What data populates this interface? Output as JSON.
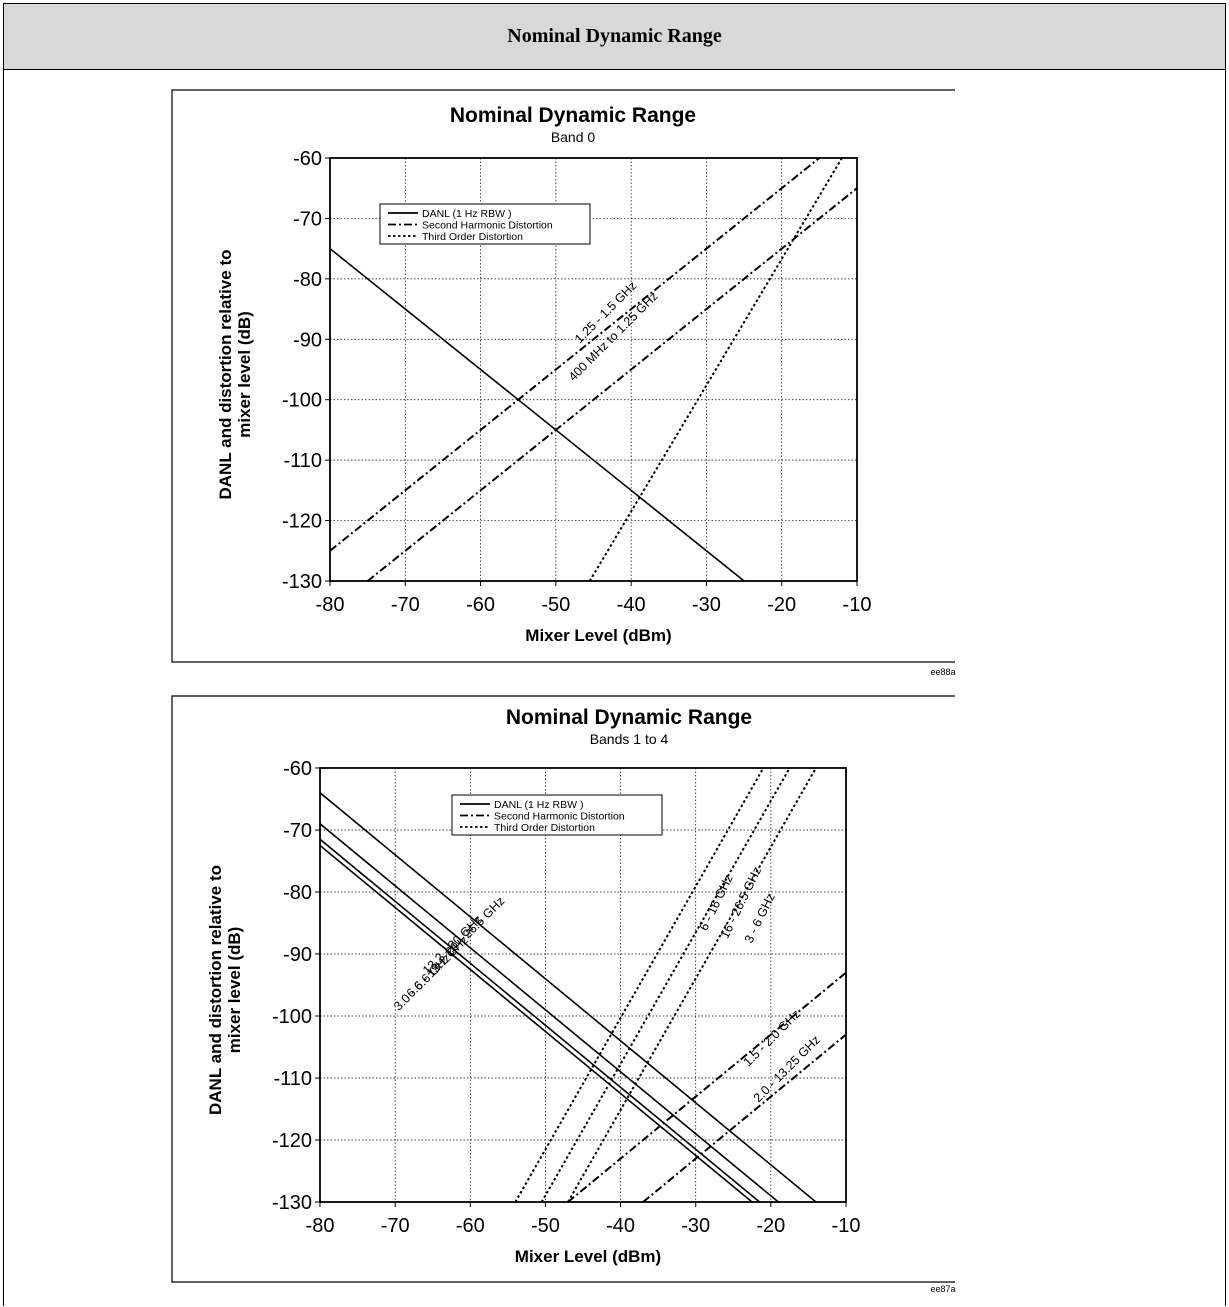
{
  "header": {
    "title": "Nominal Dynamic Range"
  },
  "figures": [
    {
      "code": "ee88a"
    },
    {
      "code": "ee87a"
    }
  ],
  "chart_data": [
    {
      "type": "line",
      "title": "Nominal Dynamic Range",
      "subtitle": "Band 0",
      "xlabel": "Mixer Level (dBm)",
      "ylabel": [
        "DANL and distortion  relative to",
        "mixer level (dB)"
      ],
      "xlim": [
        -80,
        -10
      ],
      "ylim": [
        -130,
        -60
      ],
      "xticks": [
        -80,
        -70,
        -60,
        -50,
        -40,
        -30,
        -20,
        -10
      ],
      "yticks": [
        -60,
        -70,
        -80,
        -90,
        -100,
        -110,
        -120,
        -130
      ],
      "grid": true,
      "legend_position": "top-left",
      "legend": [
        {
          "label": "DANL (1 Hz RBW )",
          "style": "solid"
        },
        {
          "label": "Second Harmonic Distortion",
          "style": "dashdot"
        },
        {
          "label": "Third Order Distortion",
          "style": "dotted"
        }
      ],
      "series": [
        {
          "style": "solid",
          "x": [
            -80,
            -25
          ],
          "y": [
            -75,
            -130
          ]
        },
        {
          "style": "dashdot",
          "label": "1.25 - 1.5 GHz",
          "x": [
            -80,
            -15
          ],
          "y": [
            -125,
            -60
          ]
        },
        {
          "style": "dashdot",
          "label": "400 MHz to 1.25 GHz",
          "x": [
            -75,
            -10
          ],
          "y": [
            -130,
            -65
          ]
        },
        {
          "style": "dotted",
          "x": [
            -45.5,
            -12
          ],
          "y": [
            -130,
            -60
          ]
        }
      ]
    },
    {
      "type": "line",
      "title": "Nominal Dynamic Range",
      "subtitle": "Bands 1 to 4",
      "xlabel": "Mixer Level (dBm)",
      "ylabel": [
        "DANL and distortion  relative to",
        "mixer level (dB)"
      ],
      "xlim": [
        -80,
        -10
      ],
      "ylim": [
        -130,
        -60
      ],
      "xticks": [
        -80,
        -70,
        -60,
        -50,
        -40,
        -30,
        -20,
        -10
      ],
      "yticks": [
        -60,
        -70,
        -80,
        -90,
        -100,
        -110,
        -120,
        -130
      ],
      "grid": true,
      "legend_position": "top-center",
      "legend": [
        {
          "label": "DANL (1 Hz RBW )",
          "style": "solid"
        },
        {
          "label": "Second Harmonic Distortion",
          "style": "dashdot"
        },
        {
          "label": "Third Order Distortion",
          "style": "dotted"
        }
      ],
      "series": [
        {
          "style": "solid",
          "label": "20 - 26.5 GHz",
          "x": [
            -80,
            -14
          ],
          "y": [
            -64,
            -130
          ]
        },
        {
          "style": "solid",
          "label": "13.2 - 20 GHz",
          "x": [
            -80,
            -19
          ],
          "y": [
            -69,
            -130
          ]
        },
        {
          "style": "solid",
          "label": "6.6 - 13.2 GHz",
          "x": [
            -80,
            -21.5
          ],
          "y": [
            -71.5,
            -130
          ]
        },
        {
          "style": "solid",
          "label": "3.0 - 6.6 GHz",
          "x": [
            -80,
            -22.5
          ],
          "y": [
            -72.5,
            -130
          ]
        },
        {
          "style": "dotted",
          "label": "6 - 16 GHz",
          "x": [
            -54,
            -21
          ],
          "y": [
            -130,
            -60
          ]
        },
        {
          "style": "dotted",
          "label": "16 - 26.5 GHz",
          "x": [
            -50.5,
            -17.5
          ],
          "y": [
            -130,
            -60
          ]
        },
        {
          "style": "dotted",
          "label": "3 - 6 GHz",
          "x": [
            -47,
            -14
          ],
          "y": [
            -130,
            -60
          ]
        },
        {
          "style": "dashdot",
          "label": "1.5 - 2.0 GHz",
          "x": [
            -47,
            -10
          ],
          "y": [
            -130,
            -93
          ]
        },
        {
          "style": "dashdot",
          "label": "2.0 - 13.25 GHz",
          "x": [
            -37,
            -10
          ],
          "y": [
            -130,
            -103
          ]
        }
      ]
    }
  ]
}
